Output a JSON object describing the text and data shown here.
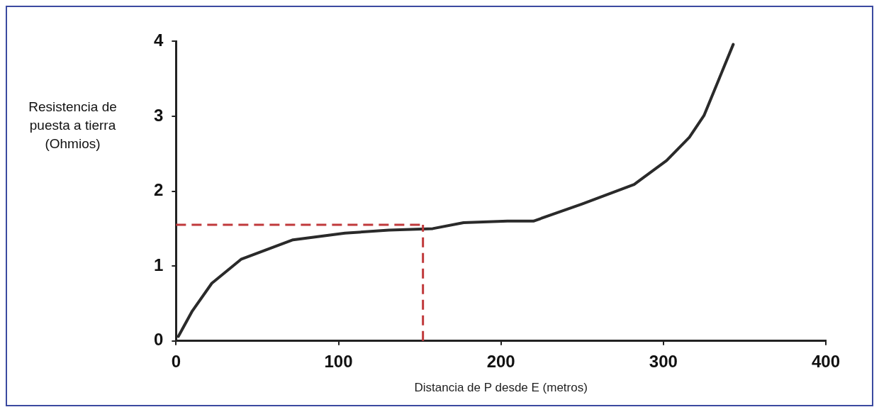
{
  "chart_data": {
    "type": "line",
    "xlabel": "Distancia de P desde E (metros)",
    "ylabel": "Resistencia de puesta a tierra (Ohmios)",
    "x": [
      1.4,
      10,
      22,
      40,
      72,
      104,
      131,
      158,
      177,
      204,
      220,
      250,
      282,
      302,
      316,
      325,
      343
    ],
    "series": [
      {
        "color": "#2a2a2a",
        "values": [
          0.06,
          0.4,
          0.77,
          1.09,
          1.35,
          1.44,
          1.48,
          1.5,
          1.58,
          1.6,
          1.6,
          1.83,
          2.09,
          2.41,
          2.72,
          3.01,
          3.96
        ]
      }
    ],
    "xlim": [
      0,
      400
    ],
    "xticks": [
      0,
      100,
      200,
      300,
      400
    ],
    "ylim": [
      0,
      4
    ],
    "yticks": [
      0,
      1,
      2,
      3,
      4
    ],
    "ref_lines": [
      {
        "axis": "y",
        "value": 1.55,
        "color": "#c0393b",
        "line_style": "dashed"
      },
      {
        "axis": "x",
        "value": 152,
        "color": "#c0393b",
        "line_style": "dashed"
      }
    ],
    "grid": false,
    "legend": false,
    "marker": "none",
    "line_style": "solid"
  }
}
